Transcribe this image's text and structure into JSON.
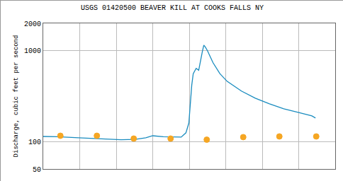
{
  "chart_data": {
    "type": "line",
    "title": "USGS 01420500 BEAVER KILL AT COOKS FALLS NY",
    "y_label": "Discharge, cubic feet per second",
    "log": "y",
    "grid": true,
    "tick_labels": "y",
    "xlim": [
      0,
      8
    ],
    "xticks": [
      0,
      1,
      2,
      3,
      4,
      5,
      6,
      7,
      8
    ],
    "ylim": [
      50,
      2000
    ],
    "yticks": [
      50,
      100,
      1000,
      2000
    ],
    "series": [
      {
        "type": "line",
        "color": "#1a8cbf",
        "line_style": "solid",
        "x": [
          0,
          0.39,
          0.97,
          1.55,
          2.13,
          2.52,
          2.81,
          3.0,
          3.29,
          3.78,
          3.91,
          3.99,
          4.03,
          4.07,
          4.11,
          4.19,
          4.26,
          4.32,
          4.36,
          4.4,
          4.44,
          4.5,
          4.65,
          4.84,
          5.04,
          5.43,
          5.81,
          6.2,
          6.59,
          6.98,
          7.36,
          7.46
        ],
        "values": [
          114,
          113,
          110,
          107,
          105,
          106,
          110,
          116,
          113,
          112,
          125,
          160,
          260,
          420,
          560,
          640,
          610,
          850,
          980,
          1150,
          1100,
          1000,
          740,
          560,
          460,
          360,
          300,
          260,
          230,
          210,
          192,
          182
        ]
      },
      {
        "type": "scatter",
        "color": "#f5a623",
        "marker": "triangle-open",
        "x": [
          0.47,
          1.47,
          2.48,
          3.49,
          4.48,
          5.48,
          6.47,
          7.48
        ],
        "values": [
          116,
          116,
          108,
          108,
          105,
          112,
          114,
          114
        ]
      }
    ]
  }
}
